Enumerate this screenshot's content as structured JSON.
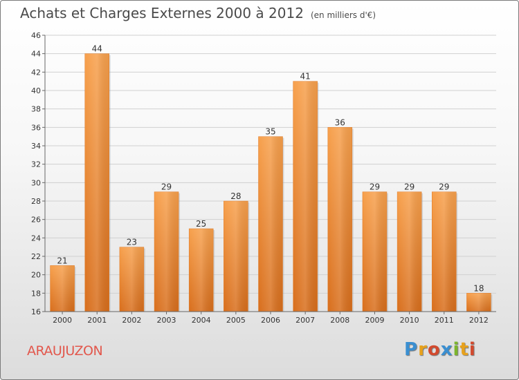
{
  "title": "Achats et Charges Externes 2000 à 2012",
  "subtitle": "(en milliers d'€)",
  "commune": "ARAUJUZON",
  "logo": {
    "letters": [
      "P",
      "r",
      "o",
      "x",
      "i",
      "t",
      "i"
    ],
    "colors": [
      "#3a8fd1",
      "#e7a11c",
      "#d24a2e",
      "#3a8fd1",
      "#7cb52c",
      "#e7a11c",
      "#d24a2e"
    ]
  },
  "chart_data": {
    "type": "bar",
    "categories": [
      "2000",
      "2001",
      "2002",
      "2003",
      "2004",
      "2005",
      "2006",
      "2007",
      "2008",
      "2009",
      "2010",
      "2011",
      "2012"
    ],
    "values": [
      21,
      44,
      23,
      29,
      25,
      28,
      35,
      41,
      36,
      29,
      29,
      29,
      18
    ],
    "ylim": [
      16,
      46
    ],
    "yticks": [
      16,
      18,
      20,
      22,
      24,
      26,
      28,
      30,
      32,
      34,
      36,
      38,
      40,
      42,
      44,
      46
    ],
    "grid": true,
    "bar_color": "#f0943a"
  }
}
